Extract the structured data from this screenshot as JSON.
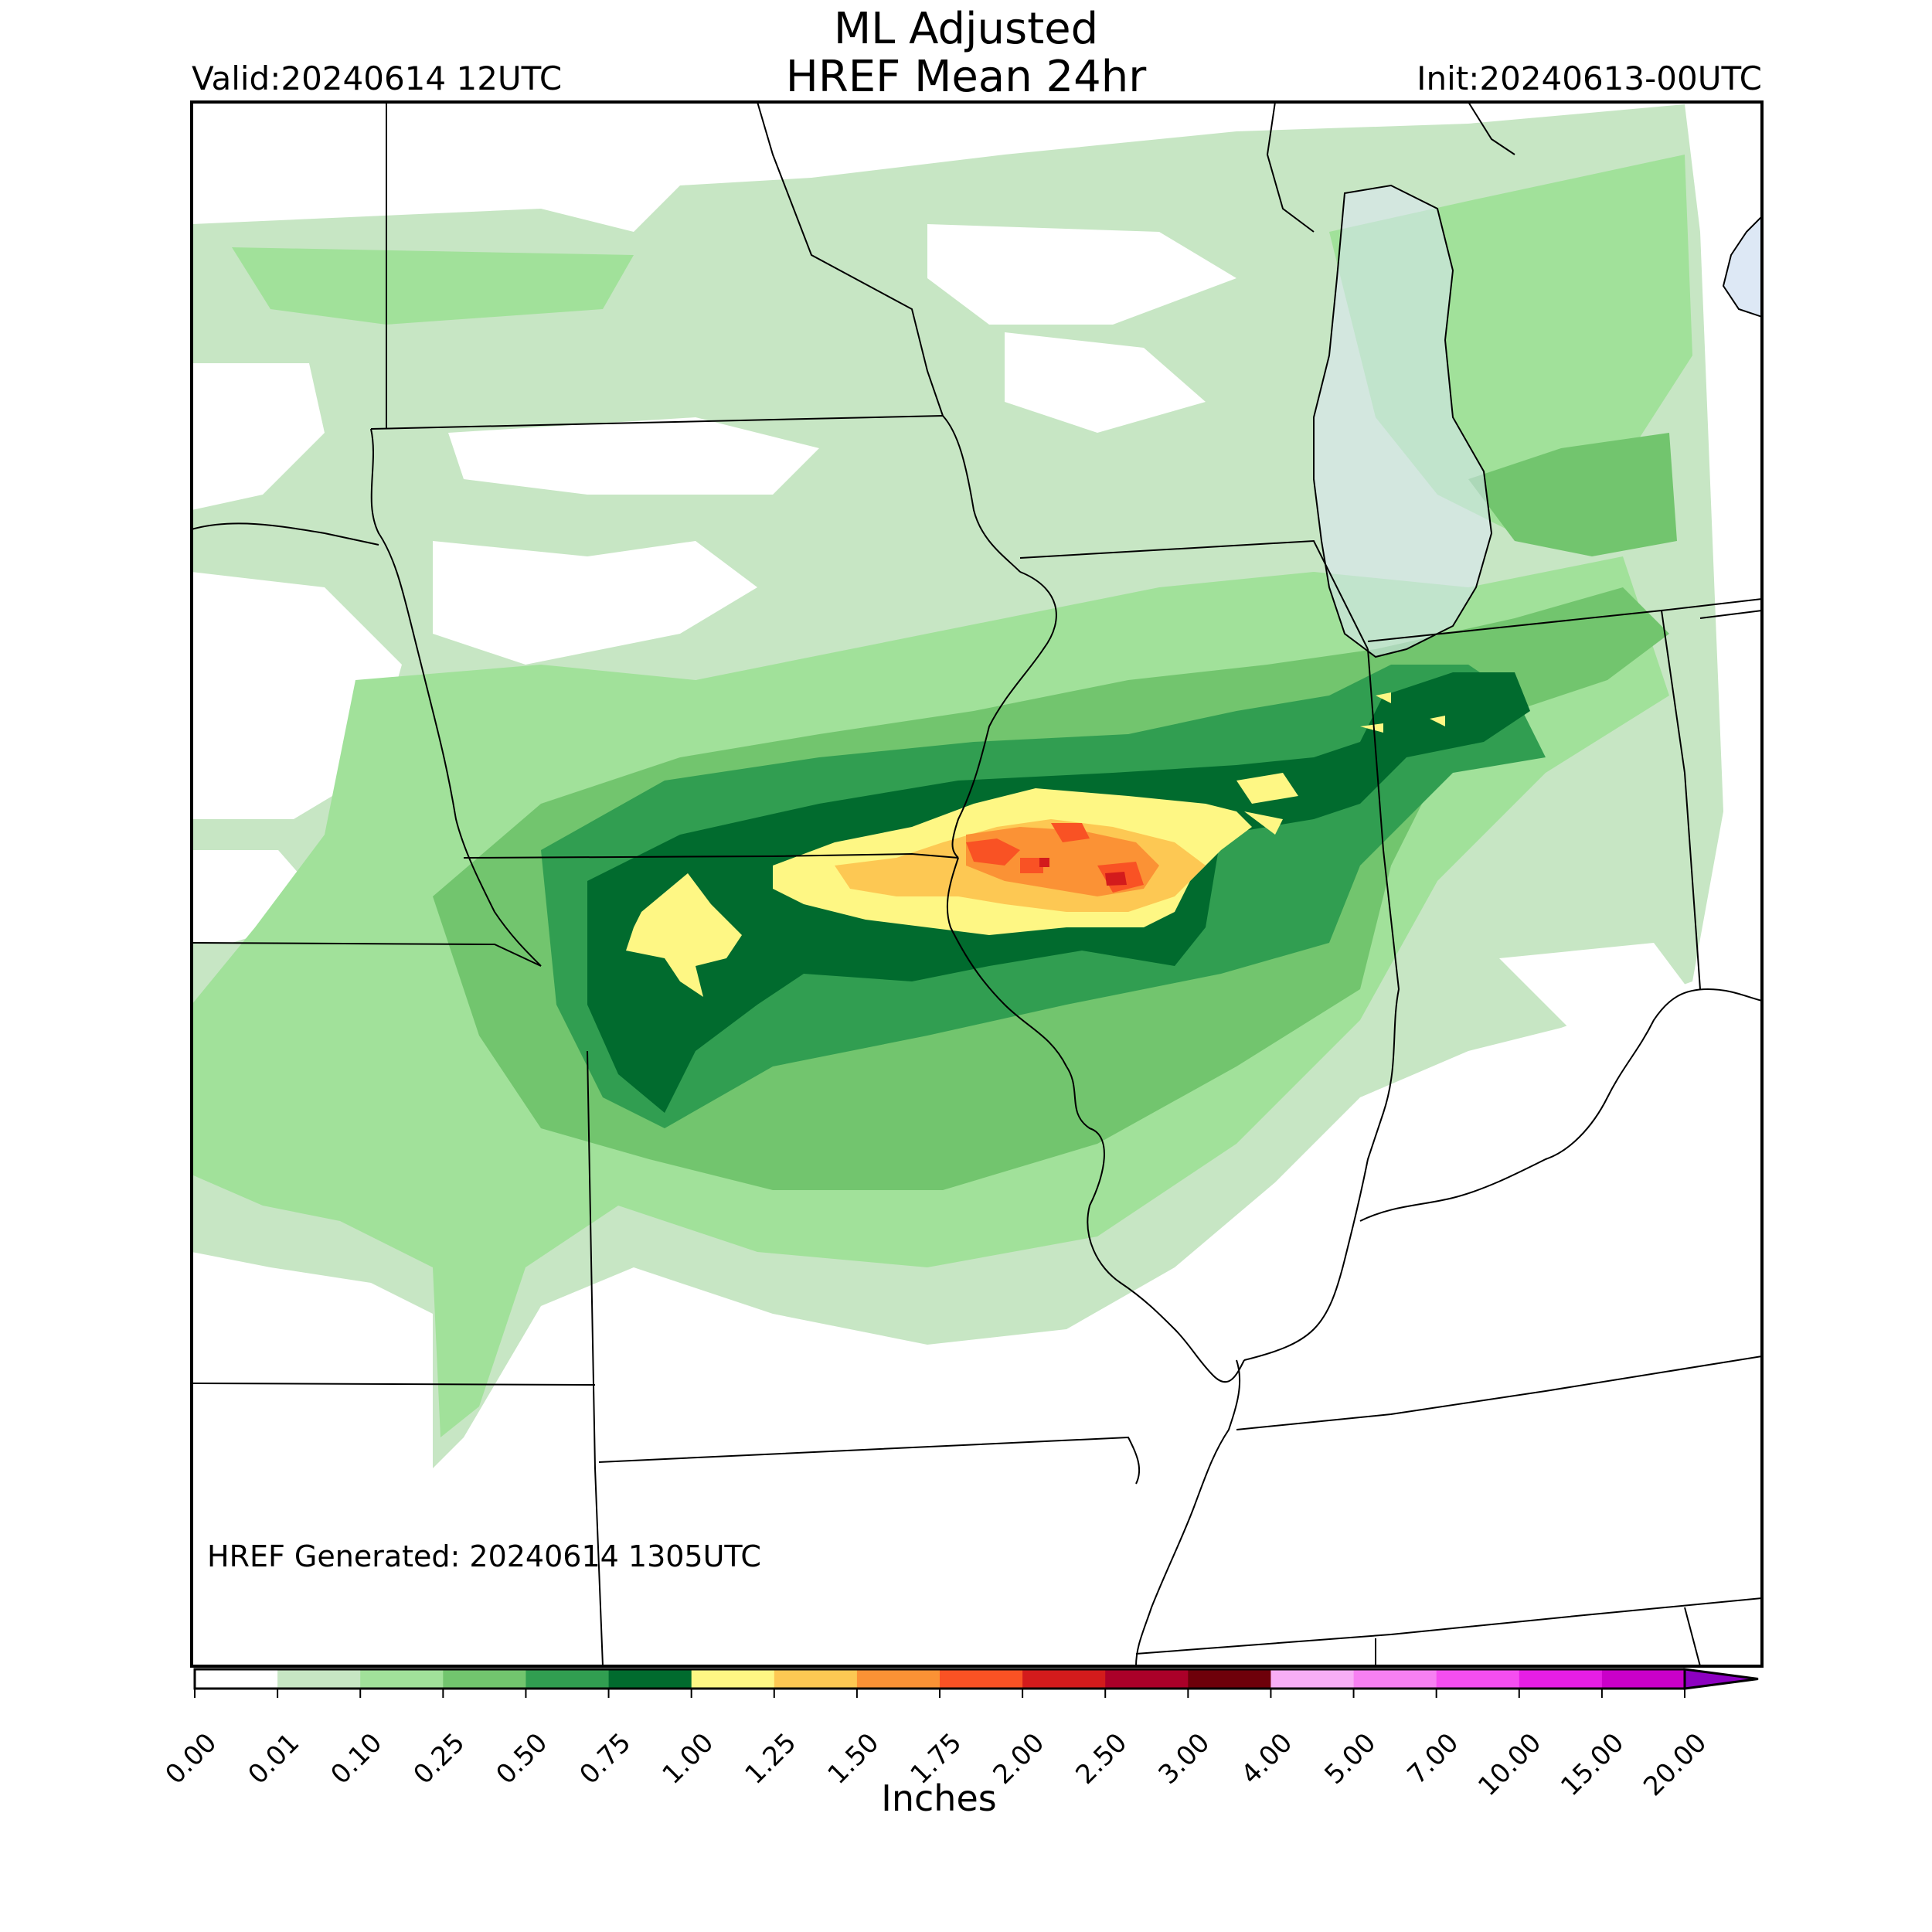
{
  "header": {
    "title_line1": "ML Adjusted",
    "title_line2": "HREF Mean 24hr",
    "valid": "Valid:20240614 12UTC",
    "init": "Init:20240613-00UTC"
  },
  "footer": {
    "generated": "HREF Generated: 20240614 1305UTC"
  },
  "colorbar": {
    "units": "Inches",
    "extend": "max",
    "ticks": [
      "0.00",
      "0.01",
      "0.10",
      "0.25",
      "0.50",
      "0.75",
      "1.00",
      "1.25",
      "1.50",
      "1.75",
      "2.00",
      "2.50",
      "3.00",
      "4.00",
      "5.00",
      "7.00",
      "10.00",
      "15.00",
      "20.00"
    ],
    "colors": [
      "#ffffff",
      "#c7e6c4",
      "#a1e19a",
      "#72c56e",
      "#319e51",
      "#016b2e",
      "#fef784",
      "#fdc853",
      "#fb9235",
      "#f95224",
      "#d31b1c",
      "#ab0029",
      "#6e000a",
      "#f8aef6",
      "#f780f2",
      "#f54ef0",
      "#e61ee5",
      "#ca00c9",
      "#8d00c1"
    ]
  },
  "precip_field": {
    "units": "Inches",
    "max_region": "Missouri / Illinois border",
    "peak_value_approx": 2.2,
    "areas": [
      {
        "category": "0.01-0.10",
        "color": "#c7e6c4"
      },
      {
        "category": "0.10-0.25",
        "color": "#a1e19a"
      },
      {
        "category": "0.25-0.50",
        "color": "#72c56e"
      },
      {
        "category": "0.50-0.75",
        "color": "#319e51"
      },
      {
        "category": "0.75-1.00",
        "color": "#016b2e"
      },
      {
        "category": "1.00-1.25",
        "color": "#fef784"
      },
      {
        "category": "1.25-1.50",
        "color": "#fdc853"
      },
      {
        "category": "1.50-1.75",
        "color": "#fb9235"
      },
      {
        "category": "1.75-2.00",
        "color": "#f95224"
      },
      {
        "category": "2.00-2.50",
        "color": "#d31b1c"
      }
    ]
  },
  "map_colors": {
    "border": "#000000",
    "lake": "#dde8f5"
  }
}
